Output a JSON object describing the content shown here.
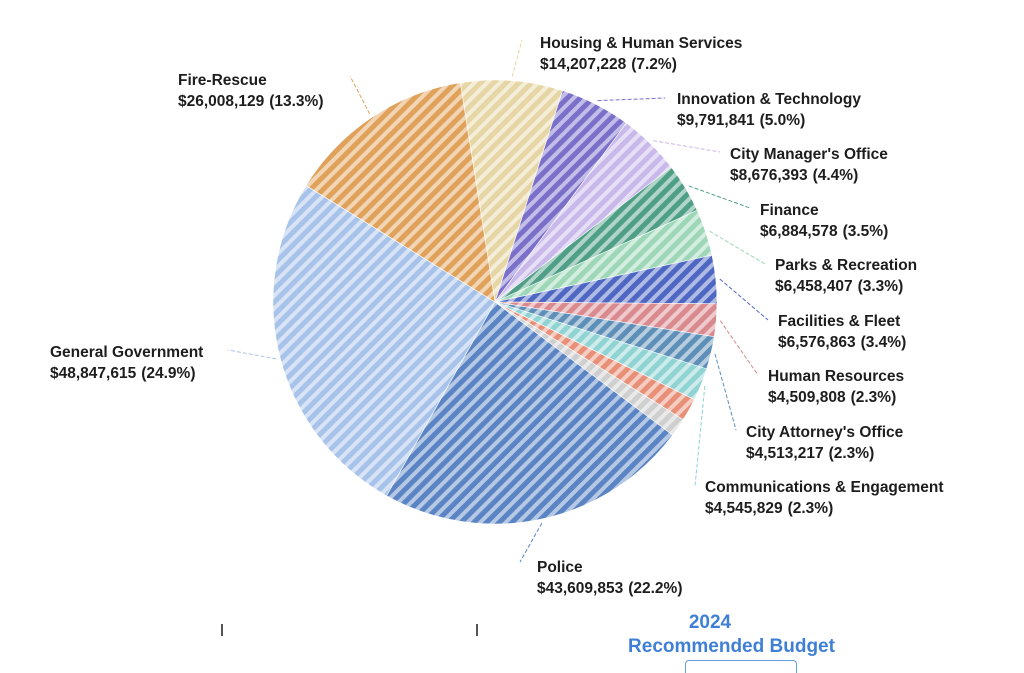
{
  "chart_data": {
    "type": "pie",
    "slices": [
      {
        "name": "Housing & Human Services",
        "amount": "$14,207,228",
        "pct": "(7.2%)",
        "value": 7.2,
        "color": "#e7d6a5"
      },
      {
        "name": "Innovation & Technology",
        "amount": "$9,791,841",
        "pct": "(5.0%)",
        "value": 5.0,
        "color": "#7a6fc9"
      },
      {
        "name": "City Manager's Office",
        "amount": "$8,676,393",
        "pct": "(4.4%)",
        "value": 4.4,
        "color": "#c9b8ea"
      },
      {
        "name": "Finance",
        "amount": "$6,884,578",
        "pct": "(3.5%)",
        "value": 3.5,
        "color": "#4f9f86"
      },
      {
        "name": "Parks & Recreation",
        "amount": "$6,458,407",
        "pct": "(3.3%)",
        "value": 3.3,
        "color": "#9dd7b8"
      },
      {
        "name": "Facilities & Fleet",
        "amount": "$6,576,863",
        "pct": "(3.4%)",
        "value": 3.4,
        "color": "#4e67c2"
      },
      {
        "name": "Human Resources",
        "amount": "$4,509,808",
        "pct": "(2.3%)",
        "value": 2.3,
        "color": "#d98a8f"
      },
      {
        "name": "City Attorney's Office",
        "amount": "$4,513,217",
        "pct": "(2.3%)",
        "value": 2.3,
        "color": "#5e8fb8"
      },
      {
        "name": "Communications & Engagement",
        "amount": "$4,545,829",
        "pct": "(2.3%)",
        "value": 2.3,
        "color": "#8fd3d3"
      },
      {
        "name": "",
        "amount": "",
        "pct": "",
        "value": 1.6,
        "color": "#e88f78"
      },
      {
        "name": "",
        "amount": "",
        "pct": "",
        "value": 1.3,
        "color": "#cfcfcf"
      },
      {
        "name": "Police",
        "amount": "$43,609,853",
        "pct": "(22.2%)",
        "value": 22.2,
        "color": "#5b84c4"
      },
      {
        "name": "General Government",
        "amount": "$48,847,615",
        "pct": "(24.9%)",
        "value": 24.9,
        "color": "#a8c3ea"
      },
      {
        "name": "Fire-Rescue",
        "amount": "$26,008,129",
        "pct": "(13.3%)",
        "value": 13.3,
        "color": "#e0a25a"
      }
    ]
  },
  "footer": {
    "year": "2024",
    "title": "Recommended Budget"
  }
}
